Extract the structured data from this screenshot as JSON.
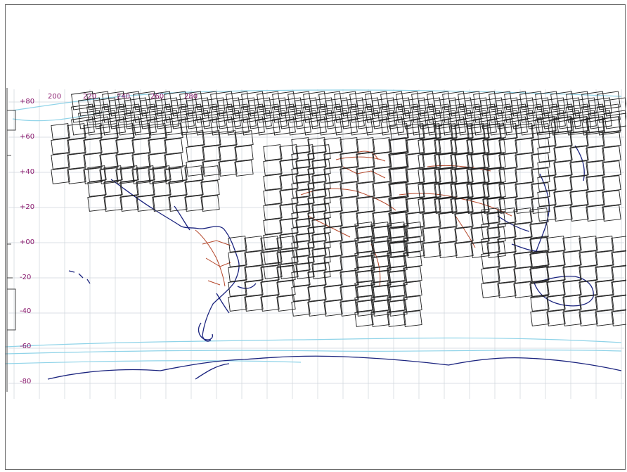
{
  "map": {
    "longitude_labels": [
      "200",
      "220",
      "240",
      "260",
      "280"
    ],
    "latitude_labels": [
      "+80",
      "+60",
      "+40",
      "+20",
      "+00",
      "-20",
      "-40",
      "-60",
      "-80"
    ],
    "colors": {
      "frame": "#6b6b6b",
      "grid": "#cfd4dc",
      "footprint": "#1e1e1e",
      "coastline": "#1a237e",
      "borders": "#b5472a",
      "sea_ice": "#8fd3e8",
      "labels": "#8a1a6e"
    }
  }
}
